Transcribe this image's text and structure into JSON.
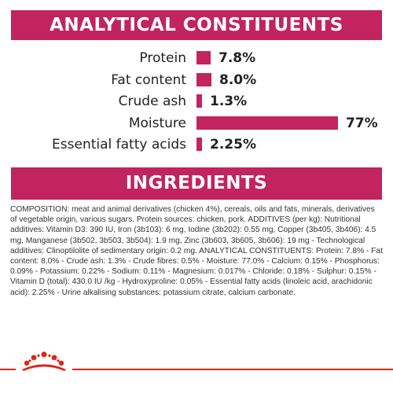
{
  "analytical": {
    "title": "ANALYTICAL CONSTITUENTS",
    "bar_color": "#c1245e",
    "rows": [
      {
        "label": "Protein",
        "value": "7.8%",
        "percent": 7.8
      },
      {
        "label": "Fat content",
        "value": "8.0%",
        "percent": 8.0
      },
      {
        "label": "Crude ash",
        "value": "1.3%",
        "percent": 1.3
      },
      {
        "label": "Moisture",
        "value": "77%",
        "percent": 77
      },
      {
        "label": "Essential fatty acids",
        "value": "2.25%",
        "percent": 2.25
      }
    ]
  },
  "ingredients": {
    "title": "INGREDIENTS",
    "composition": "COMPOSITION: meat and animal derivatives (chicken 4%), cereals, oils and fats, minerals, derivatives of vegetable origin, various sugars. Protein sources: chicken, pork. ADDITIVES (per kg): Nutritional additives: Vitamin D3: 390 IU, Iron (3b103): 6 mg, Iodine (3b202): 0.55 mg, Copper (3b405, 3b406): 4.5 mg, Manganese (3b502, 3b503, 3b504): 1.9 mg, Zinc (3b603, 3b605, 3b606): 19 mg - Technological additives: Clinoptilolite of sedimentary origin: 0.2 mg. ANALYTICAL CONSTITUENTS: Protein: 7.8% - Fat content: 8.0% - Crude ash: 1.3% - Crude fibres: 0.5% - Moisture: 77.0% - Calcium: 0.15% - Phosphorus: 0.09% - Potassium: 0.22% - Sodium: 0.11% - Magnesium: 0.017% - Chloride: 0.18% - Sulphur: 0.15% - Vitamin D (total): 430.0 IU /kg - Hydroxyproline: 0.05% - Essential fatty acids (linoleic acid, arachidonic acid): 2.25% - Urine alkalising substances: potassium citrate, calcium carbonate."
  },
  "footer": {
    "logo_icon": "royal-canin-crown-icon",
    "accent_color": "#e2231a"
  }
}
